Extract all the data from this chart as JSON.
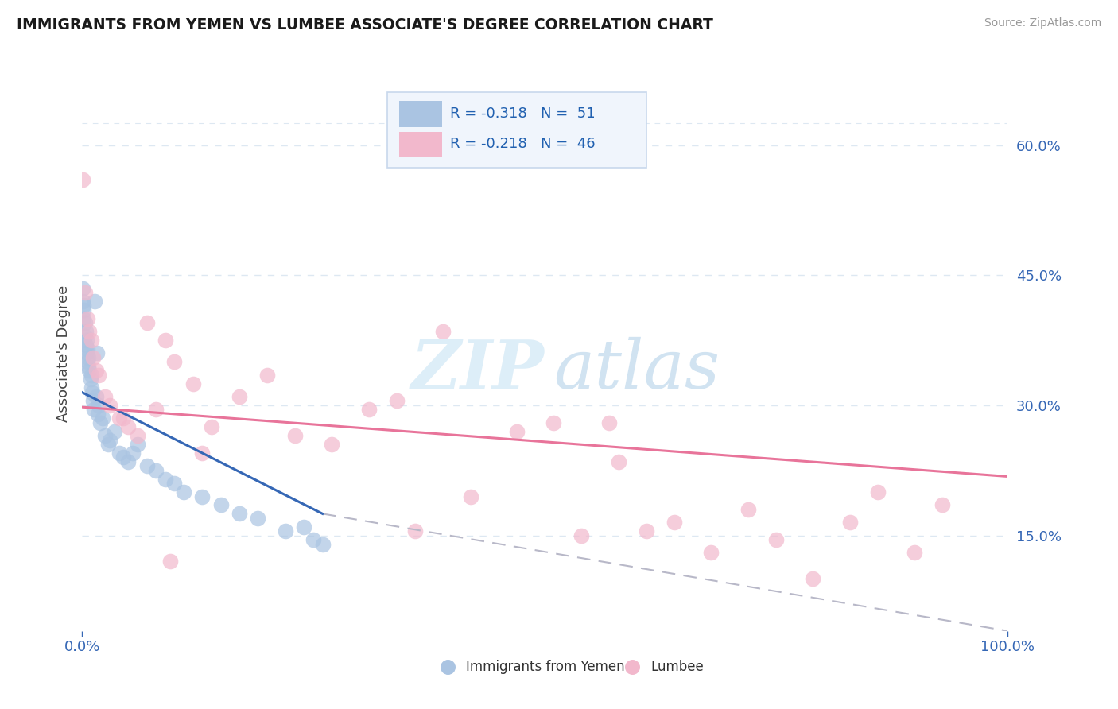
{
  "title": "IMMIGRANTS FROM YEMEN VS LUMBEE ASSOCIATE'S DEGREE CORRELATION CHART",
  "source_text": "Source: ZipAtlas.com",
  "ylabel": "Associate's Degree",
  "legend_r1": "R = -0.318",
  "legend_n1": "N =  51",
  "legend_r2": "R = -0.218",
  "legend_n2": "N =  46",
  "blue_color": "#aac4e2",
  "pink_color": "#f2b8cc",
  "blue_line_color": "#3567b5",
  "pink_line_color": "#e8749a",
  "dashed_line_color": "#b8b8c8",
  "xlim": [
    0.0,
    1.0
  ],
  "ylim": [
    0.04,
    0.68
  ],
  "ytick_positions": [
    0.15,
    0.3,
    0.45,
    0.6
  ],
  "grid_color": "#dde8f2",
  "bg_color": "#ffffff",
  "blue_scatter_x": [
    0.001,
    0.001,
    0.002,
    0.002,
    0.002,
    0.003,
    0.003,
    0.004,
    0.004,
    0.005,
    0.005,
    0.006,
    0.006,
    0.007,
    0.007,
    0.008,
    0.009,
    0.01,
    0.01,
    0.011,
    0.012,
    0.013,
    0.014,
    0.015,
    0.016,
    0.017,
    0.018,
    0.02,
    0.022,
    0.025,
    0.028,
    0.03,
    0.035,
    0.04,
    0.045,
    0.05,
    0.055,
    0.06,
    0.07,
    0.08,
    0.09,
    0.1,
    0.11,
    0.13,
    0.15,
    0.17,
    0.19,
    0.22,
    0.24,
    0.25,
    0.26
  ],
  "blue_scatter_y": [
    0.435,
    0.42,
    0.415,
    0.4,
    0.41,
    0.395,
    0.38,
    0.37,
    0.385,
    0.36,
    0.375,
    0.35,
    0.365,
    0.345,
    0.355,
    0.34,
    0.33,
    0.32,
    0.335,
    0.315,
    0.305,
    0.295,
    0.42,
    0.31,
    0.36,
    0.29,
    0.3,
    0.28,
    0.285,
    0.265,
    0.255,
    0.26,
    0.27,
    0.245,
    0.24,
    0.235,
    0.245,
    0.255,
    0.23,
    0.225,
    0.215,
    0.21,
    0.2,
    0.195,
    0.185,
    0.175,
    0.17,
    0.155,
    0.16,
    0.145,
    0.14
  ],
  "pink_scatter_x": [
    0.001,
    0.003,
    0.006,
    0.008,
    0.01,
    0.012,
    0.015,
    0.018,
    0.025,
    0.03,
    0.04,
    0.05,
    0.06,
    0.07,
    0.08,
    0.09,
    0.1,
    0.12,
    0.14,
    0.17,
    0.2,
    0.23,
    0.27,
    0.31,
    0.36,
    0.39,
    0.42,
    0.47,
    0.51,
    0.54,
    0.57,
    0.61,
    0.64,
    0.68,
    0.72,
    0.75,
    0.79,
    0.83,
    0.86,
    0.9,
    0.93,
    0.095,
    0.045,
    0.13,
    0.34,
    0.58
  ],
  "pink_scatter_y": [
    0.56,
    0.43,
    0.4,
    0.385,
    0.375,
    0.355,
    0.34,
    0.335,
    0.31,
    0.3,
    0.285,
    0.275,
    0.265,
    0.395,
    0.295,
    0.375,
    0.35,
    0.325,
    0.275,
    0.31,
    0.335,
    0.265,
    0.255,
    0.295,
    0.155,
    0.385,
    0.195,
    0.27,
    0.28,
    0.15,
    0.28,
    0.155,
    0.165,
    0.13,
    0.18,
    0.145,
    0.1,
    0.165,
    0.2,
    0.13,
    0.185,
    0.12,
    0.285,
    0.245,
    0.305,
    0.235
  ],
  "blue_trend_x": [
    0.0,
    0.26
  ],
  "blue_trend_y": [
    0.315,
    0.175
  ],
  "pink_trend_x": [
    0.0,
    1.0
  ],
  "pink_trend_y": [
    0.298,
    0.218
  ],
  "dashed_trend_x": [
    0.26,
    1.0
  ],
  "dashed_trend_y": [
    0.175,
    0.04
  ]
}
